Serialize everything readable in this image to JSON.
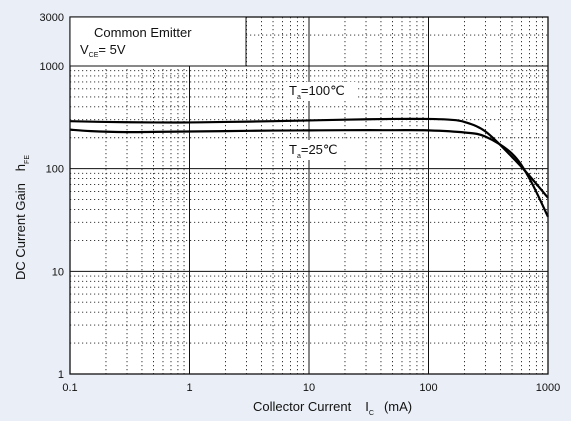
{
  "chart_data": {
    "type": "line",
    "x_scale": "log",
    "y_scale": "log",
    "xlim": [
      0.1,
      1000
    ],
    "ylim": [
      1,
      3000
    ],
    "x_ticks": [
      "0.1",
      "1",
      "10",
      "100",
      "1000"
    ],
    "y_ticks": [
      "1",
      "10",
      "100",
      "1000",
      "3000"
    ],
    "xlabel": {
      "main": "Collector Current",
      "symbol": "I",
      "subscript": "C",
      "unit": "(mA)"
    },
    "ylabel": {
      "main": "DC Current Gain",
      "symbol": "h",
      "subscript": "FE"
    },
    "box": {
      "line1": "Common Emitter",
      "v_symbol": "V",
      "v_subscript": "CE",
      "v_value": "= 5V"
    },
    "grid": true,
    "series": [
      {
        "name": "Ta=100℃",
        "label_symbol": "T",
        "label_subscript": "a",
        "label_value": "=100℃",
        "x": [
          0.1,
          0.2,
          0.5,
          1,
          2,
          5,
          10,
          20,
          50,
          100,
          150,
          200,
          300,
          500,
          700,
          1000
        ],
        "y": [
          290,
          285,
          282,
          282,
          285,
          290,
          295,
          300,
          305,
          305,
          300,
          285,
          230,
          130,
          85,
          52
        ]
      },
      {
        "name": "Ta=25℃",
        "label_symbol": "T",
        "label_subscript": "a",
        "label_value": "=25℃",
        "x": [
          0.1,
          0.15,
          0.3,
          0.5,
          1,
          2,
          5,
          10,
          20,
          50,
          100,
          200,
          300,
          500,
          700,
          1000
        ],
        "y": [
          240,
          232,
          227,
          228,
          230,
          232,
          235,
          236,
          237,
          237,
          236,
          225,
          205,
          140,
          80,
          34
        ]
      }
    ]
  }
}
